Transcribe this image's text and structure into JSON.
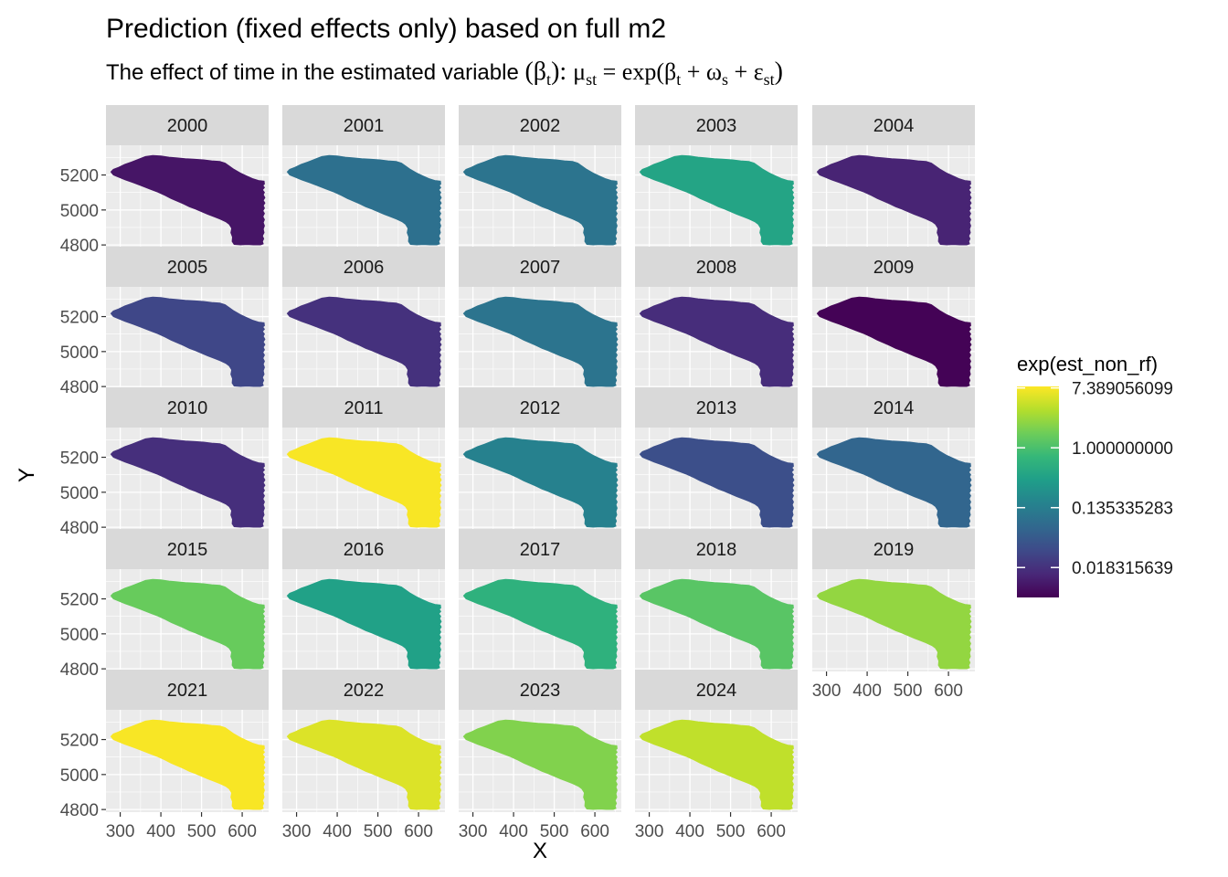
{
  "chart_data": {
    "type": "heatmap",
    "title": "Prediction (fixed effects only) based on full m2",
    "subtitle": {
      "text": "The effect of time in the estimated variable ",
      "beta_open": "(β",
      "beta_sub": "t",
      "beta_close": "): ",
      "mu": "μ",
      "mu_sub": "st",
      "eq": " = exp(β",
      "t_sub": "t",
      "plus_omega": " + ω",
      "s_sub": "s",
      "plus_eps": " + ε",
      "st_sub": "st",
      "close": ")"
    },
    "xlabel": "X",
    "ylabel": "Y",
    "x_ticks": [
      "300",
      "400",
      "500",
      "600"
    ],
    "x_tick_values": [
      300,
      400,
      500,
      600
    ],
    "y_ticks": [
      "5200",
      "5000",
      "4800"
    ],
    "y_tick_values": [
      5200,
      5000,
      4800
    ],
    "xlim": [
      265,
      665
    ],
    "ylim": [
      4785,
      5370
    ],
    "facets": [
      {
        "year": "2000",
        "log_value": -4.6
      },
      {
        "year": "2001",
        "log_value": -2.4
      },
      {
        "year": "2002",
        "log_value": -2.3
      },
      {
        "year": "2003",
        "log_value": -0.9
      },
      {
        "year": "2004",
        "log_value": -4.3
      },
      {
        "year": "2005",
        "log_value": -3.5
      },
      {
        "year": "2006",
        "log_value": -4.0
      },
      {
        "year": "2007",
        "log_value": -2.3
      },
      {
        "year": "2008",
        "log_value": -4.1
      },
      {
        "year": "2009",
        "log_value": -4.95
      },
      {
        "year": "2010",
        "log_value": -4.05
      },
      {
        "year": "2011",
        "log_value": 2.0
      },
      {
        "year": "2012",
        "log_value": -1.9
      },
      {
        "year": "2013",
        "log_value": -3.3
      },
      {
        "year": "2014",
        "log_value": -2.7
      },
      {
        "year": "2015",
        "log_value": 0.4
      },
      {
        "year": "2016",
        "log_value": -1.0
      },
      {
        "year": "2017",
        "log_value": -0.5
      },
      {
        "year": "2018",
        "log_value": 0.2
      },
      {
        "year": "2019",
        "log_value": 0.9
      },
      {
        "year": "2021",
        "log_value": 2.0
      },
      {
        "year": "2022",
        "log_value": 1.7
      },
      {
        "year": "2023",
        "log_value": 0.7
      },
      {
        "year": "2024",
        "log_value": 1.4
      }
    ],
    "legend": {
      "title": "exp(est_non_rf)",
      "placement": "right",
      "labels": [
        "7.389056099",
        "1.000000000",
        "0.135335283",
        "0.018315639"
      ],
      "label_log_values": [
        2,
        0,
        -2,
        -4
      ],
      "log_range": [
        -5,
        2.05
      ],
      "scale": "viridis (log)"
    },
    "colors": {
      "panel_bg": "#ebebeb",
      "grid": "#ffffff",
      "strip_bg": "#d9d9d9",
      "viridis": [
        "#440154",
        "#482878",
        "#3E4A89",
        "#31688E",
        "#26828E",
        "#1F9E89",
        "#35B779",
        "#6DCD59",
        "#B4DE2C",
        "#FDE725"
      ]
    }
  }
}
